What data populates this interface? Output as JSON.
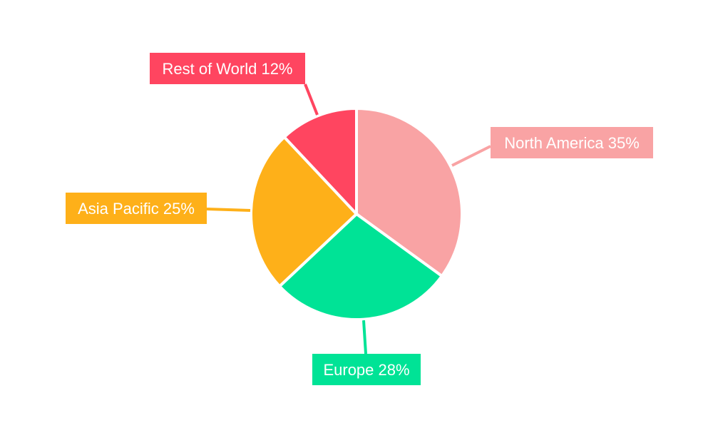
{
  "chart_data": {
    "type": "pie",
    "title": "",
    "start_angle_deg": 0,
    "direction": "clockwise",
    "slices": [
      {
        "label": "North America",
        "value": 35,
        "display": "North America 35%",
        "color": "#F9A3A4"
      },
      {
        "label": "Europe",
        "value": 28,
        "display": "Europe 28%",
        "color": "#00E396"
      },
      {
        "label": "Asia Pacific",
        "value": 25,
        "display": "Asia Pacific 25%",
        "color": "#FEB019"
      },
      {
        "label": "Rest of World",
        "value": 12,
        "display": "Rest of World 12%",
        "color": "#FF4560"
      }
    ],
    "legend": "none",
    "data_labels": "outside-callout-boxes"
  }
}
